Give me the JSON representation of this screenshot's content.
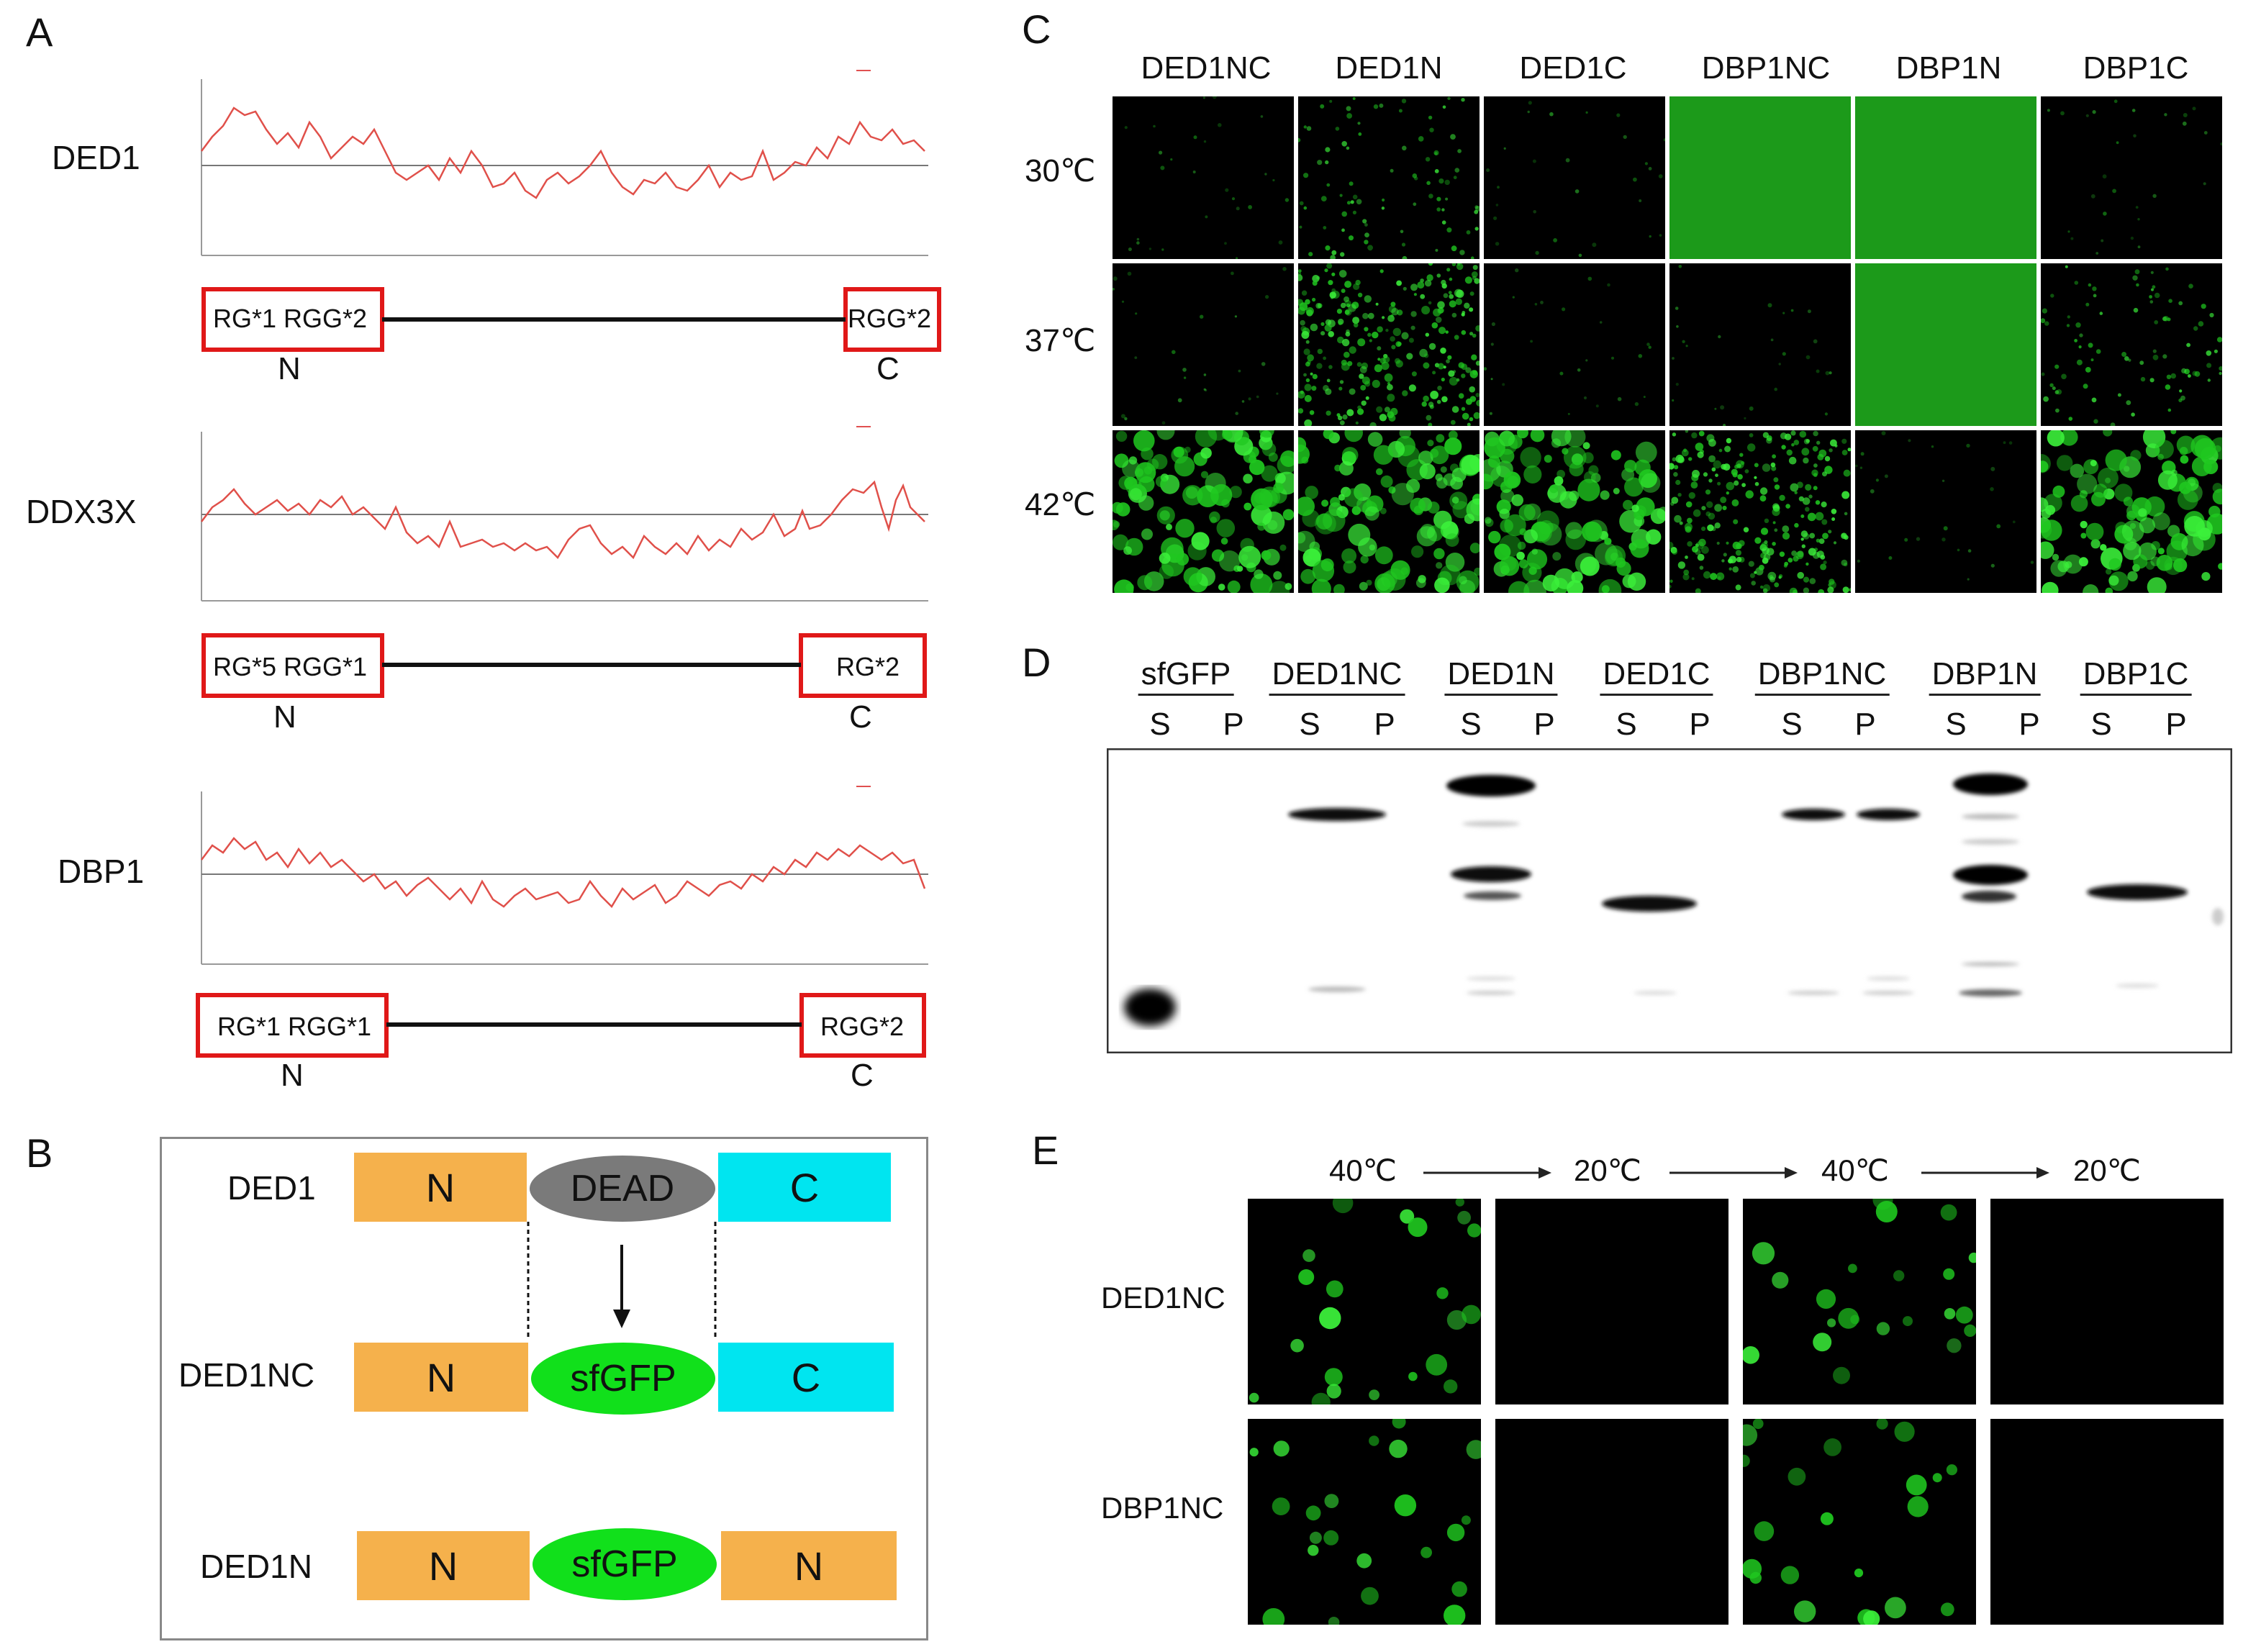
{
  "panels": {
    "a": "A",
    "b": "B",
    "c": "C",
    "d": "D",
    "e": "E"
  },
  "panelA": {
    "proteins": [
      {
        "name": "DED1",
        "left_box": "RG*1  RGG*2",
        "right_box": "RGG*2",
        "n": "N",
        "c": "C"
      },
      {
        "name": "DDX3X",
        "left_box": "RG*5  RGG*1",
        "right_box": "RG*2",
        "n": "N",
        "c": "C"
      },
      {
        "name": "DBP1",
        "left_box": "RG*1  RGG*1",
        "right_box": "RGG*2",
        "n": "N",
        "c": "C"
      }
    ]
  },
  "panelB": {
    "rows": [
      {
        "name": "DED1",
        "left": "N",
        "mid": "DEAD",
        "right": "C"
      },
      {
        "name": "DED1NC",
        "left": "N",
        "mid": "sfGFP",
        "right": "C"
      },
      {
        "name": "DED1N",
        "left": "N",
        "mid": "sfGFP",
        "right": "N"
      }
    ],
    "colors": {
      "n_box": "#f5b14c",
      "c_box": "#00e5f0",
      "dead": "#7a7a7a",
      "sfgfp": "#11e01b"
    }
  },
  "panelC": {
    "columns": [
      "DED1NC",
      "DED1N",
      "DED1C",
      "DBP1NC",
      "DBP1N",
      "DBP1C"
    ],
    "rows": [
      "30℃",
      "37℃",
      "42℃"
    ]
  },
  "panelD": {
    "lanes": [
      "sfGFP",
      "DED1NC",
      "DED1N",
      "DED1C",
      "DBP1NC",
      "DBP1N",
      "DBP1C"
    ],
    "s": "S",
    "p": "P"
  },
  "panelE": {
    "temps": [
      "40℃",
      "20℃",
      "40℃",
      "20℃"
    ],
    "rows": [
      "DED1NC",
      "DBP1NC"
    ]
  }
}
